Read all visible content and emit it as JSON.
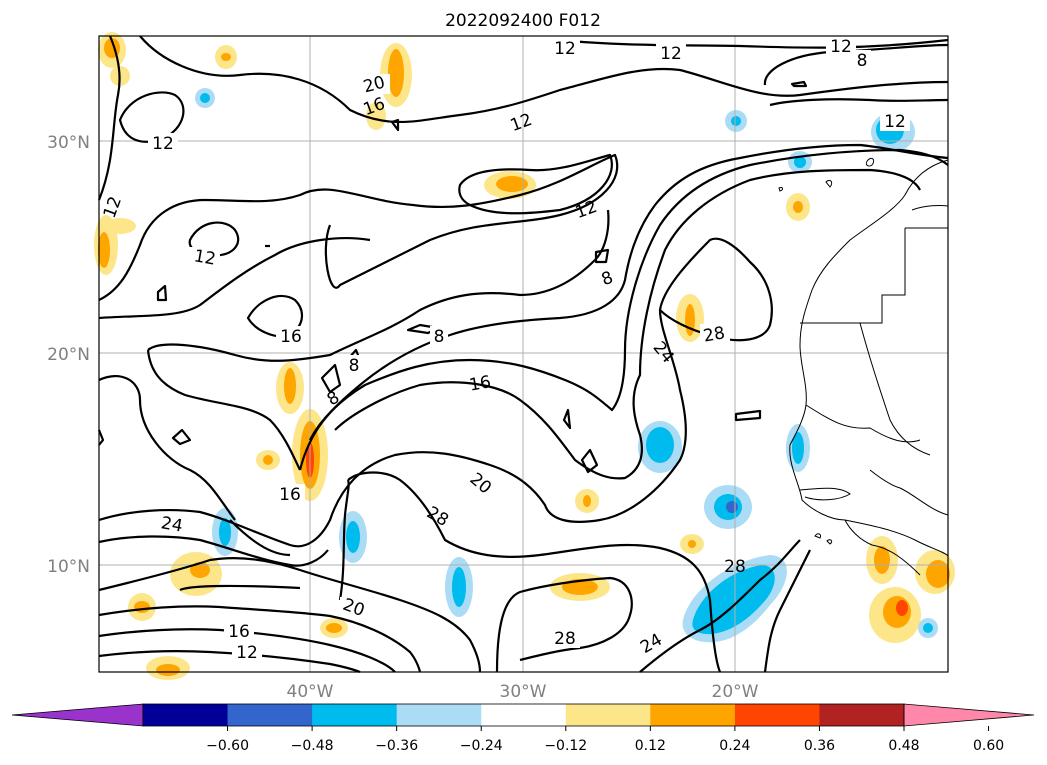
{
  "title": "2022092400 F012",
  "lat_labels": [
    "30°N",
    "20°N",
    "10°N"
  ],
  "lon_labels": [
    "40°W",
    "30°W",
    "20°W"
  ],
  "contour_labels": [
    "12",
    "12",
    "12",
    "8",
    "12",
    "12",
    "12",
    "20",
    "16",
    "12",
    "12",
    "12",
    "8",
    "16",
    "8",
    "8",
    "8",
    "16",
    "24",
    "28",
    "20",
    "28",
    "16",
    "24",
    "20",
    "12",
    "16",
    "28",
    "24"
  ],
  "colorbar": {
    "ticks": [
      "−0.60",
      "−0.48",
      "−0.36",
      "−0.24",
      "−0.12",
      "0.12",
      "0.24",
      "0.36",
      "0.48",
      "0.60"
    ],
    "colors": [
      "#9933cc",
      "#000099",
      "#3366cc",
      "#00bbee",
      "#aaddf5",
      "#ffffff",
      "#fde68a",
      "#ffa500",
      "#ff4500",
      "#b22222",
      "#ff88aa"
    ]
  },
  "colors": {
    "negative_strong": "#00bbee",
    "negative_weak": "#aaddf5",
    "positive_weak": "#fde68a",
    "positive_mid": "#ffa500",
    "positive_strong": "#ff4500"
  }
}
